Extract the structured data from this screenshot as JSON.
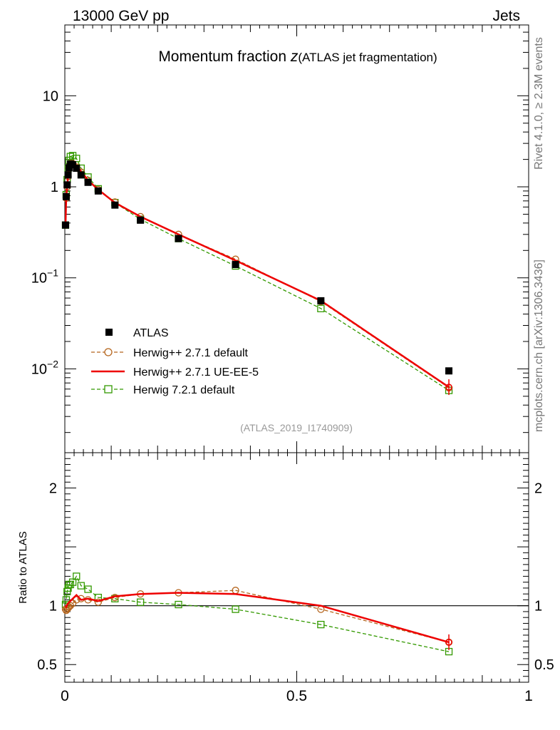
{
  "header": {
    "energy_label": "13000 GeV pp",
    "process_label": "Jets"
  },
  "side_text": {
    "rivet": "Rivet 4.1.0, ≥ 2.3M events",
    "mcplots": "mcplots.cern.ch [arXiv:1306.3436]"
  },
  "chart_data": {
    "type": "line",
    "title_main": "Momentum fraction ",
    "title_z": "z",
    "title_sub": "(ATLAS jet fragmentation)",
    "analysis_id": "(ATLAS_2019_I1740909)",
    "xlabel": "",
    "xlim": [
      0,
      1
    ],
    "main_ylim_log": [
      0.0012,
      60
    ],
    "main_yticks": [
      {
        "value": 10,
        "mant": "10",
        "exp": ""
      },
      {
        "value": 1,
        "mant": "1",
        "exp": ""
      },
      {
        "value": 0.1,
        "mant": "10",
        "exp": "−1"
      },
      {
        "value": 0.01,
        "mant": "10",
        "exp": "−2"
      }
    ],
    "ratio_ylabel": "Ratio to ATLAS",
    "ratio_ylim": [
      0.35,
      2.3
    ],
    "ratio_yticks_left": [
      {
        "value": 2,
        "label": "2"
      },
      {
        "value": 1,
        "label": "1"
      },
      {
        "value": 0.5,
        "label": "0.5"
      }
    ],
    "ratio_yticks_right": [
      {
        "value": 2,
        "label": "2"
      },
      {
        "value": 1,
        "label": "1"
      },
      {
        "value": 0.5,
        "label": "0.5"
      }
    ],
    "xticks": [
      {
        "value": 0,
        "label": "0"
      },
      {
        "value": 0.5,
        "label": "0.5"
      },
      {
        "value": 1,
        "label": "1"
      }
    ],
    "x": [
      0.0015,
      0.003,
      0.005,
      0.007,
      0.009,
      0.012,
      0.017,
      0.025,
      0.035,
      0.05,
      0.072,
      0.108,
      0.163,
      0.245,
      0.368,
      0.552,
      0.828
    ],
    "series": [
      {
        "name": "ATLAS",
        "style": "data",
        "color": "#000000",
        "values": [
          0.38,
          0.78,
          1.05,
          1.35,
          1.62,
          1.78,
          1.75,
          1.6,
          1.35,
          1.12,
          0.9,
          0.63,
          0.43,
          0.27,
          0.14,
          0.056,
          0.0095
        ]
      },
      {
        "name": "Herwig++ 2.7.1 default",
        "style": "circle-dashed",
        "color": "#b5651d",
        "values": [
          0.38,
          0.75,
          1.0,
          1.3,
          1.6,
          1.8,
          1.8,
          1.65,
          1.45,
          1.18,
          0.93,
          0.68,
          0.47,
          0.3,
          0.16,
          0.055,
          0.0062
        ]
      },
      {
        "name": "Herwig++ 2.7.1 UE-EE-5",
        "style": "solid",
        "color": "#ee0000",
        "values": [
          0.39,
          0.78,
          1.02,
          1.33,
          1.63,
          1.82,
          1.85,
          1.72,
          1.48,
          1.18,
          0.93,
          0.67,
          0.47,
          0.3,
          0.155,
          0.056,
          0.0063
        ]
      },
      {
        "name": "Herwig 7.2.1 default",
        "style": "square-dashed",
        "color": "#339900",
        "values": [
          0.38,
          0.82,
          1.2,
          1.6,
          1.95,
          2.15,
          2.2,
          2.05,
          1.6,
          1.28,
          0.95,
          0.67,
          0.44,
          0.27,
          0.135,
          0.046,
          0.0058
        ]
      }
    ],
    "ratio_series": [
      {
        "name": "Herwig++ 2.7.1 default",
        "style": "circle-dashed",
        "color": "#b5651d",
        "values": [
          0.97,
          0.96,
          0.97,
          0.98,
          0.99,
          1.0,
          1.02,
          1.05,
          1.06,
          1.05,
          1.03,
          1.07,
          1.1,
          1.11,
          1.13,
          0.97,
          0.69
        ]
      },
      {
        "name": "Herwig++ 2.7.1 UE-EE-5",
        "style": "solid",
        "color": "#ee0000",
        "values": [
          1.0,
          0.99,
          1.01,
          1.02,
          1.03,
          1.04,
          1.06,
          1.09,
          1.05,
          1.06,
          1.04,
          1.08,
          1.1,
          1.11,
          1.1,
          1.0,
          0.69
        ]
      },
      {
        "name": "Herwig 7.2.1 default",
        "style": "square-dashed",
        "color": "#339900",
        "values": [
          1.01,
          1.05,
          1.12,
          1.15,
          1.18,
          1.18,
          1.2,
          1.25,
          1.17,
          1.14,
          1.07,
          1.06,
          1.03,
          1.01,
          0.97,
          0.84,
          0.61
        ]
      }
    ]
  }
}
